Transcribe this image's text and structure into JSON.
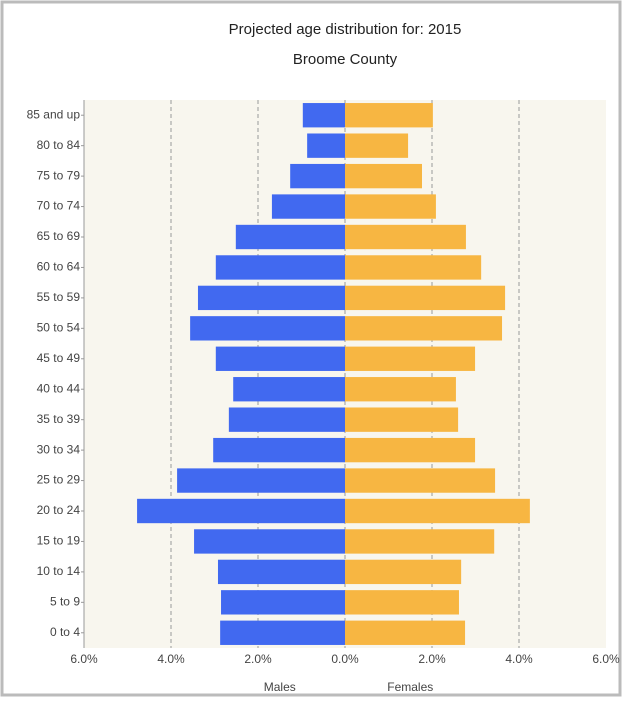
{
  "chart_data": {
    "type": "bar",
    "orientation": "horizontal",
    "title": "Projected age distribution for: 2015",
    "subtitle": "Broome County",
    "categories": [
      "0 to 4",
      "5 to 9",
      "10 to 14",
      "15 to 19",
      "20 to 24",
      "25 to 29",
      "30 to 34",
      "35 to 39",
      "40 to 44",
      "45 to 49",
      "50 to 54",
      "55 to 59",
      "60 to 64",
      "65 to 69",
      "70 to 74",
      "75 to 79",
      "80 to 84",
      "85 and up"
    ],
    "series": [
      {
        "name": "Males",
        "color": "#4169f0",
        "values": [
          2.87,
          2.85,
          2.92,
          3.47,
          4.78,
          3.86,
          3.03,
          2.67,
          2.57,
          2.97,
          3.56,
          3.38,
          2.97,
          2.51,
          1.68,
          1.26,
          0.87,
          0.97
        ]
      },
      {
        "name": "Females",
        "color": "#f7b642",
        "values": [
          2.76,
          2.62,
          2.67,
          3.43,
          4.25,
          3.45,
          2.99,
          2.6,
          2.55,
          2.99,
          3.61,
          3.68,
          3.13,
          2.78,
          2.09,
          1.77,
          1.45,
          2.02
        ]
      }
    ],
    "xlim": [
      -6,
      6
    ],
    "xticks": [
      {
        "value": -6,
        "label": "6.0%"
      },
      {
        "value": -4,
        "label": "4.0%"
      },
      {
        "value": -2,
        "label": "2.0%"
      },
      {
        "value": 0,
        "label": "0.0%"
      },
      {
        "value": 2,
        "label": "2.0%"
      },
      {
        "value": 4,
        "label": "4.0%"
      },
      {
        "value": 6,
        "label": "6.0%"
      }
    ],
    "grid": true
  }
}
